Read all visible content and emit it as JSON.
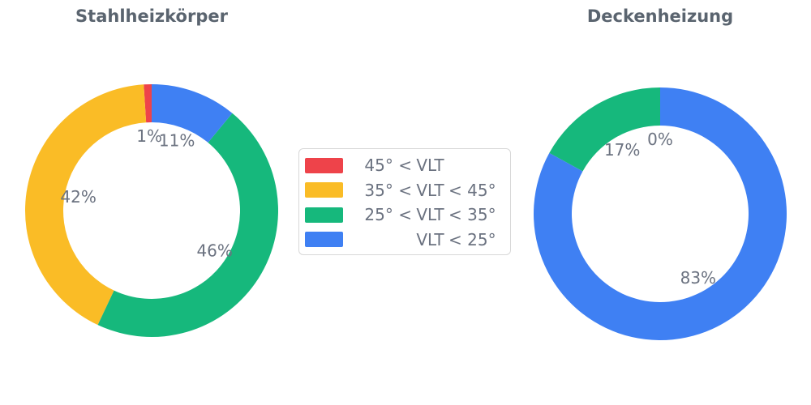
{
  "style": {
    "title_color": "#5A646F",
    "label_color": "#6B7280",
    "legend_border_color": "#D8D8D8",
    "background": "#ffffff"
  },
  "colors": {
    "red": "#EE434A",
    "yellow": "#FABC26",
    "green": "#16B87C",
    "blue": "#3F80F3"
  },
  "legend": {
    "items": [
      {
        "color_key": "red",
        "color": "#EE434A",
        "label": "45° < VLT",
        "prefix": "45° <",
        "mid": "VLT",
        "suffix": ""
      },
      {
        "color_key": "yellow",
        "color": "#FABC26",
        "label": "35° < VLT < 45°",
        "prefix": "35° <",
        "mid": "VLT",
        "suffix": "< 45°"
      },
      {
        "color_key": "green",
        "color": "#16B87C",
        "label": "25° < VLT < 35°",
        "prefix": "25° <",
        "mid": "VLT",
        "suffix": "< 35°"
      },
      {
        "color_key": "blue",
        "color": "#3F80F3",
        "label": "VLT < 25°",
        "prefix": "",
        "mid": "VLT",
        "suffix": "< 25°"
      }
    ]
  },
  "chart_data": [
    {
      "type": "pie",
      "title": "Stahlheizkörper",
      "categories": [
        "45° < VLT",
        "35° < VLT < 45°",
        "25° < VLT < 35°",
        "VLT < 25°"
      ],
      "color_keys": [
        "red",
        "yellow",
        "green",
        "blue"
      ],
      "colors": [
        "#EE434A",
        "#FABC26",
        "#16B87C",
        "#3F80F3"
      ],
      "values": [
        1,
        42,
        46,
        11
      ],
      "display_labels": [
        "1%",
        "42%",
        "46%",
        "11%"
      ],
      "hole": 0.7,
      "start_angle_deg": 90,
      "direction": "counterclockwise",
      "legend_position": "center-between-charts"
    },
    {
      "type": "pie",
      "title": "Deckenheizung",
      "categories": [
        "45° < VLT",
        "35° < VLT < 45°",
        "25° < VLT < 35°",
        "VLT < 25°"
      ],
      "color_keys": [
        "red",
        "yellow",
        "green",
        "blue"
      ],
      "colors": [
        "#EE434A",
        "#FABC26",
        "#16B87C",
        "#3F80F3"
      ],
      "values": [
        0,
        0,
        17,
        83
      ],
      "display_labels": [
        "0%",
        "",
        "17%",
        "83%"
      ],
      "hole": 0.7,
      "start_angle_deg": 90,
      "direction": "counterclockwise",
      "legend_position": "center-between-charts"
    }
  ]
}
